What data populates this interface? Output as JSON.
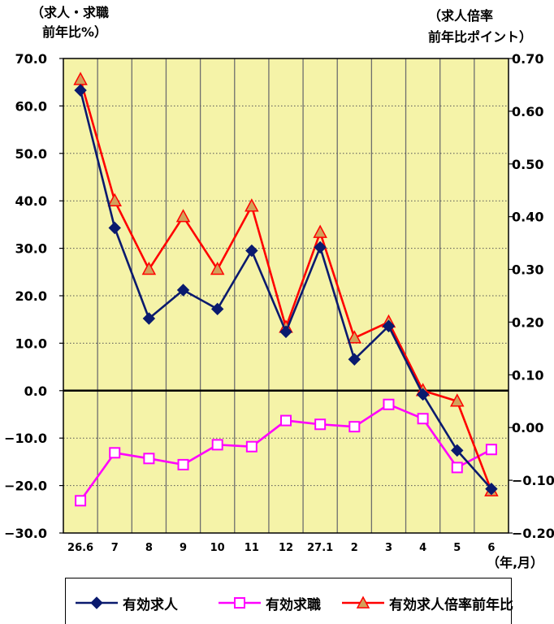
{
  "chart_data": {
    "type": "line",
    "left_axis_title": [
      "（求人・求職",
      "前年比%）"
    ],
    "right_axis_title": [
      "（求人倍率",
      "前年比ポイント）"
    ],
    "x_unit_label": "（年,月）",
    "categories": [
      "26.6",
      "7",
      "8",
      "9",
      "10",
      "11",
      "12",
      "27.1",
      "2",
      "3",
      "4",
      "5",
      "6"
    ],
    "left_axis": {
      "ylim": [
        -30,
        70
      ],
      "ticks": [
        "70.0",
        "60.0",
        "50.0",
        "40.0",
        "30.0",
        "20.0",
        "10.0",
        "0.0",
        "−10.0",
        "−20.0",
        "−30.0"
      ]
    },
    "right_axis": {
      "ylim": [
        -0.2,
        0.7
      ],
      "ticks": [
        "0.70",
        "0.60",
        "0.50",
        "0.40",
        "0.30",
        "0.20",
        "0.10",
        "0.00",
        "−0.10",
        "−0.20"
      ]
    },
    "series": [
      {
        "name": "有効求人",
        "axis": "left",
        "color": "#0a1a6e",
        "marker": "diamond",
        "values": [
          63.3,
          34.3,
          15.2,
          21.2,
          17.2,
          29.5,
          12.4,
          30.2,
          6.6,
          13.6,
          -0.8,
          -12.6,
          -20.7
        ]
      },
      {
        "name": "有効求職",
        "axis": "left",
        "color": "#ff00ff",
        "marker": "square",
        "values": [
          -23.2,
          -13.1,
          -14.3,
          -15.6,
          -11.4,
          -11.8,
          -6.3,
          -7.1,
          -7.6,
          -2.9,
          -5.9,
          -16.2,
          -12.4
        ]
      },
      {
        "name": "有効求人倍率前年比",
        "axis": "right",
        "color": "#ff0000",
        "marker": "triangle",
        "values": [
          0.66,
          0.43,
          0.3,
          0.4,
          0.3,
          0.42,
          0.19,
          0.37,
          0.17,
          0.2,
          0.07,
          0.05,
          -0.12
        ]
      }
    ],
    "grid": true,
    "legend_position": "bottom"
  }
}
